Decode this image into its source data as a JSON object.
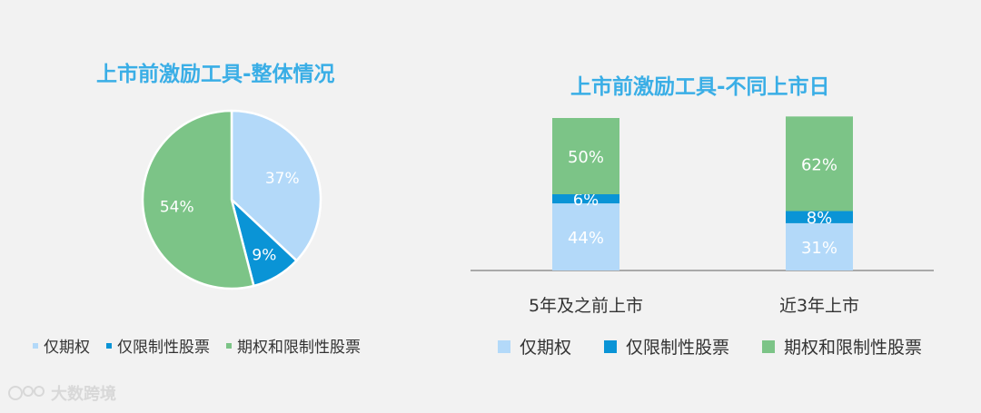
{
  "colors": {
    "light_blue": "#b3d9f9",
    "blue": "#0a94d6",
    "green": "#7cc487",
    "title": "#3aaee6"
  },
  "legend": [
    "仅期权",
    "仅限制性股票",
    "期权和限制性股票"
  ],
  "watermark": {
    "text": "大数跨境",
    "icon": "logo-icon"
  },
  "chart_data": [
    {
      "type": "pie",
      "title": "上市前激励工具-整体情况",
      "slices": [
        {
          "label": "仅期权",
          "value": 37,
          "display": "37%"
        },
        {
          "label": "仅限制性股票",
          "value": 9,
          "display": "9%"
        },
        {
          "label": "期权和限制性股票",
          "value": 54,
          "display": "54%"
        }
      ]
    },
    {
      "type": "bar",
      "stacked": true,
      "title": "上市前激励工具-不同上市日",
      "categories": [
        "5年及之前上市",
        "近3年上市"
      ],
      "series": [
        {
          "name": "仅期权",
          "values": [
            44,
            31
          ],
          "labels": [
            "44%",
            "31%"
          ]
        },
        {
          "name": "仅限制性股票",
          "values": [
            6,
            8
          ],
          "labels": [
            "6%",
            "8%"
          ]
        },
        {
          "name": "期权和限制性股票",
          "values": [
            50,
            62
          ],
          "labels": [
            "50%",
            "62%"
          ]
        }
      ],
      "ylim": [
        0,
        100
      ],
      "legend_position": "bottom"
    }
  ]
}
